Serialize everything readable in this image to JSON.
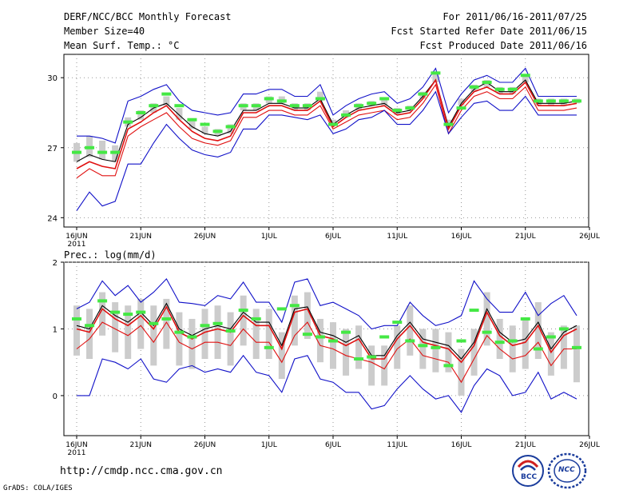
{
  "header": {
    "title": "DERF/NCC/BCC Monthly Forecast",
    "member_size": "Member Size=40",
    "variable": "Mean Surf. Temp.: °C",
    "period": "For 2011/06/16-2011/07/25",
    "started": "Fcst Started Refer Date 2011/06/15",
    "produced": "Fcst Produced Date 2011/06/16"
  },
  "footer": {
    "url": "http://cmdp.ncc.cma.gov.cn",
    "credit": "GrADS: COLA/IGES",
    "logo_bcc": "BCC",
    "logo_ncc": "NCC"
  },
  "colors": {
    "max_min": "#1010c8",
    "spread": "#000000",
    "mean": "#e01010",
    "obs": "#44e844",
    "box": "#cccccc",
    "grid": "#999999"
  },
  "chart_data": [
    {
      "type": "line",
      "title": "Mean Surf. Temp.: °C",
      "xlabel": "",
      "ylabel": "°C",
      "ylim": [
        23.6,
        31
      ],
      "yticks": [
        24,
        27,
        30
      ],
      "x_tick_labels": [
        "16JUN",
        "21JUN",
        "26JUN",
        "1JUL",
        "6JUL",
        "11JUL",
        "16JUL",
        "21JUL",
        "26JUL"
      ],
      "year_label": "2011",
      "x_start_day": 0,
      "series": [
        {
          "name": "max",
          "color_key": "max_min",
          "values": [
            27.5,
            27.5,
            27.4,
            27.2,
            29.0,
            29.2,
            29.5,
            29.7,
            29.0,
            28.6,
            28.5,
            28.4,
            28.5,
            29.3,
            29.3,
            29.5,
            29.5,
            29.2,
            29.2,
            29.7,
            28.4,
            28.8,
            29.1,
            29.3,
            29.4,
            28.9,
            29.1,
            29.6,
            30.4,
            28.5,
            29.3,
            29.9,
            30.1,
            29.8,
            29.8,
            30.4,
            29.2,
            29.2,
            29.2,
            29.2
          ]
        },
        {
          "name": "upper",
          "color_key": "spread",
          "values": [
            26.4,
            26.7,
            26.5,
            26.4,
            28.0,
            28.3,
            28.7,
            28.9,
            28.4,
            27.9,
            27.6,
            27.5,
            27.7,
            28.6,
            28.6,
            28.9,
            28.9,
            28.7,
            28.7,
            29.1,
            28.0,
            28.4,
            28.7,
            28.8,
            28.9,
            28.5,
            28.6,
            29.2,
            29.9,
            27.9,
            28.9,
            29.5,
            29.8,
            29.4,
            29.4,
            29.9,
            28.9,
            28.9,
            28.9,
            29.0
          ]
        },
        {
          "name": "mean",
          "color_key": "mean",
          "values": [
            26.1,
            26.4,
            26.2,
            26.1,
            27.8,
            28.1,
            28.5,
            28.8,
            28.2,
            27.7,
            27.4,
            27.3,
            27.5,
            28.5,
            28.5,
            28.8,
            28.8,
            28.6,
            28.6,
            29.0,
            27.9,
            28.3,
            28.6,
            28.7,
            28.8,
            28.4,
            28.5,
            29.1,
            29.9,
            27.8,
            28.8,
            29.4,
            29.6,
            29.3,
            29.3,
            29.8,
            28.8,
            28.8,
            28.8,
            28.9
          ]
        },
        {
          "name": "lower",
          "color_key": "mean",
          "values": [
            25.7,
            26.1,
            25.8,
            25.8,
            27.5,
            27.9,
            28.2,
            28.5,
            27.9,
            27.4,
            27.2,
            27.1,
            27.3,
            28.3,
            28.3,
            28.6,
            28.6,
            28.4,
            28.4,
            28.8,
            27.8,
            28.1,
            28.4,
            28.5,
            28.6,
            28.2,
            28.3,
            28.9,
            29.7,
            27.6,
            28.6,
            29.2,
            29.4,
            29.1,
            29.1,
            29.6,
            28.6,
            28.6,
            28.6,
            28.7
          ]
        },
        {
          "name": "min",
          "color_key": "max_min",
          "values": [
            24.3,
            25.1,
            24.5,
            24.7,
            26.3,
            26.3,
            27.2,
            28.0,
            27.4,
            26.9,
            26.7,
            26.6,
            26.8,
            27.8,
            27.8,
            28.4,
            28.4,
            28.3,
            28.2,
            28.4,
            27.6,
            27.8,
            28.2,
            28.3,
            28.6,
            28.0,
            28.0,
            28.6,
            29.4,
            27.6,
            28.3,
            28.9,
            29.0,
            28.6,
            28.6,
            29.2,
            28.4,
            28.4,
            28.4,
            28.4
          ]
        }
      ],
      "obs": [
        26.8,
        27.0,
        26.8,
        26.8,
        28.1,
        28.5,
        28.8,
        29.3,
        28.8,
        28.2,
        28.0,
        27.7,
        27.9,
        28.8,
        28.8,
        29.1,
        29.0,
        28.8,
        28.8,
        29.1,
        28.0,
        28.4,
        28.8,
        28.9,
        29.1,
        28.6,
        28.7,
        29.3,
        30.2,
        28.0,
        28.7,
        29.6,
        29.8,
        29.5,
        29.5,
        30.1,
        29.0,
        29.0,
        29.0,
        29.0
      ],
      "box_low": [
        26.4,
        26.6,
        26.5,
        26.4,
        27.9,
        28.2,
        28.5,
        28.8,
        28.2,
        27.8,
        27.6,
        27.5,
        27.6,
        28.6,
        28.6,
        28.9,
        28.9,
        28.6,
        28.6,
        29.0,
        28.0,
        28.3,
        28.6,
        28.8,
        28.8,
        28.4,
        28.6,
        29.1,
        29.8,
        27.9,
        28.8,
        29.4,
        29.6,
        29.3,
        29.3,
        29.8,
        28.8,
        28.8,
        28.8,
        28.9
      ],
      "box_high": [
        27.2,
        27.5,
        27.3,
        27.1,
        28.3,
        28.6,
        28.9,
        29.2,
        28.7,
        28.2,
        27.9,
        27.8,
        28.0,
        28.9,
        28.9,
        29.2,
        29.2,
        28.9,
        28.9,
        29.4,
        28.2,
        28.6,
        28.9,
        29.0,
        29.1,
        28.7,
        28.8,
        29.4,
        30.2,
        28.2,
        29.1,
        29.7,
        29.9,
        29.6,
        29.6,
        30.1,
        29.1,
        29.1,
        29.1,
        29.1
      ]
    },
    {
      "type": "line",
      "title": "Prec.: log(mm/d)",
      "xlabel": "",
      "ylabel": "log(mm/d)",
      "ylim": [
        -0.6,
        2
      ],
      "yticks": [
        0,
        1,
        2
      ],
      "x_tick_labels": [
        "16JUN",
        "21JUN",
        "26JUN",
        "1JUL",
        "6JUL",
        "11JUL",
        "16JUL",
        "21JUL",
        "26JUL"
      ],
      "year_label": "2011",
      "x_start_day": 0,
      "series": [
        {
          "name": "max",
          "color_key": "max_min",
          "values": [
            1.3,
            1.4,
            1.72,
            1.5,
            1.65,
            1.4,
            1.55,
            1.75,
            1.4,
            1.38,
            1.35,
            1.5,
            1.45,
            1.7,
            1.4,
            1.4,
            1.1,
            1.7,
            1.75,
            1.35,
            1.4,
            1.3,
            1.2,
            1.0,
            1.05,
            1.05,
            1.4,
            1.2,
            1.05,
            1.1,
            1.2,
            1.72,
            1.45,
            1.25,
            1.25,
            1.55,
            1.2,
            1.38,
            1.5,
            1.2
          ]
        },
        {
          "name": "upper",
          "color_key": "spread",
          "values": [
            1.05,
            1.0,
            1.35,
            1.2,
            1.1,
            1.25,
            1.05,
            1.38,
            1.0,
            0.9,
            1.0,
            1.05,
            1.0,
            1.25,
            1.1,
            1.1,
            0.75,
            1.3,
            1.33,
            0.95,
            0.9,
            0.8,
            0.9,
            0.6,
            0.6,
            0.9,
            1.1,
            0.85,
            0.8,
            0.75,
            0.55,
            0.8,
            1.3,
            0.95,
            0.8,
            0.85,
            1.1,
            0.7,
            0.95,
            1.05
          ]
        },
        {
          "name": "mean",
          "color_key": "mean",
          "values": [
            1.0,
            0.95,
            1.3,
            1.15,
            1.05,
            1.2,
            1.0,
            1.33,
            0.95,
            0.85,
            0.95,
            1.0,
            0.95,
            1.2,
            1.05,
            1.05,
            0.7,
            1.25,
            1.3,
            0.9,
            0.85,
            0.75,
            0.85,
            0.55,
            0.55,
            0.85,
            1.05,
            0.8,
            0.75,
            0.7,
            0.5,
            0.75,
            1.25,
            0.9,
            0.75,
            0.8,
            1.05,
            0.65,
            0.9,
            1.0
          ]
        },
        {
          "name": "lower",
          "color_key": "mean",
          "values": [
            0.7,
            0.85,
            1.1,
            1.0,
            0.9,
            1.05,
            0.8,
            1.1,
            0.8,
            0.7,
            0.8,
            0.8,
            0.75,
            1.0,
            0.8,
            0.8,
            0.5,
            0.9,
            1.1,
            0.75,
            0.7,
            0.6,
            0.55,
            0.5,
            0.4,
            0.7,
            0.85,
            0.6,
            0.55,
            0.5,
            0.2,
            0.55,
            0.9,
            0.7,
            0.55,
            0.6,
            0.8,
            0.45,
            0.7,
            0.7
          ]
        },
        {
          "name": "min",
          "color_key": "max_min",
          "values": [
            0.0,
            0.0,
            0.55,
            0.5,
            0.4,
            0.55,
            0.25,
            0.2,
            0.4,
            0.45,
            0.35,
            0.4,
            0.35,
            0.6,
            0.35,
            0.3,
            0.05,
            0.55,
            0.6,
            0.25,
            0.2,
            0.05,
            0.05,
            -0.2,
            -0.15,
            0.1,
            0.3,
            0.1,
            -0.05,
            0.0,
            -0.25,
            0.15,
            0.4,
            0.3,
            0.0,
            0.05,
            0.35,
            -0.05,
            0.05,
            -0.05
          ]
        }
      ],
      "obs": [
        1.15,
        1.05,
        1.42,
        1.25,
        1.22,
        1.25,
        1.08,
        1.15,
        0.95,
        0.88,
        1.05,
        1.08,
        0.97,
        1.28,
        1.15,
        0.72,
        1.3,
        1.35,
        0.92,
        0.88,
        0.82,
        0.95,
        0.55,
        0.58,
        0.88,
        1.1,
        0.82,
        0.75,
        0.72,
        0.45,
        0.82,
        1.28,
        0.95,
        0.8,
        0.82,
        1.15,
        0.7,
        0.88,
        1.0,
        0.72
      ],
      "box_low": [
        0.6,
        0.55,
        0.9,
        0.65,
        0.55,
        0.7,
        0.45,
        0.7,
        0.45,
        0.4,
        0.55,
        0.55,
        0.45,
        0.75,
        0.55,
        0.55,
        0.25,
        0.75,
        0.85,
        0.5,
        0.4,
        0.3,
        0.4,
        0.15,
        0.15,
        0.4,
        0.6,
        0.4,
        0.35,
        0.35,
        0.0,
        0.3,
        0.75,
        0.55,
        0.35,
        0.4,
        0.55,
        0.3,
        0.4,
        0.2
      ],
      "box_high": [
        1.35,
        1.3,
        1.55,
        1.4,
        1.35,
        1.45,
        1.35,
        1.45,
        1.25,
        1.15,
        1.3,
        1.35,
        1.25,
        1.5,
        1.3,
        1.3,
        0.95,
        1.5,
        1.55,
        1.15,
        1.1,
        1.0,
        1.05,
        0.75,
        0.75,
        1.05,
        1.35,
        1.0,
        1.0,
        0.95,
        0.7,
        1.0,
        1.55,
        1.15,
        1.05,
        1.15,
        1.4,
        0.95,
        1.05,
        1.05
      ]
    }
  ]
}
